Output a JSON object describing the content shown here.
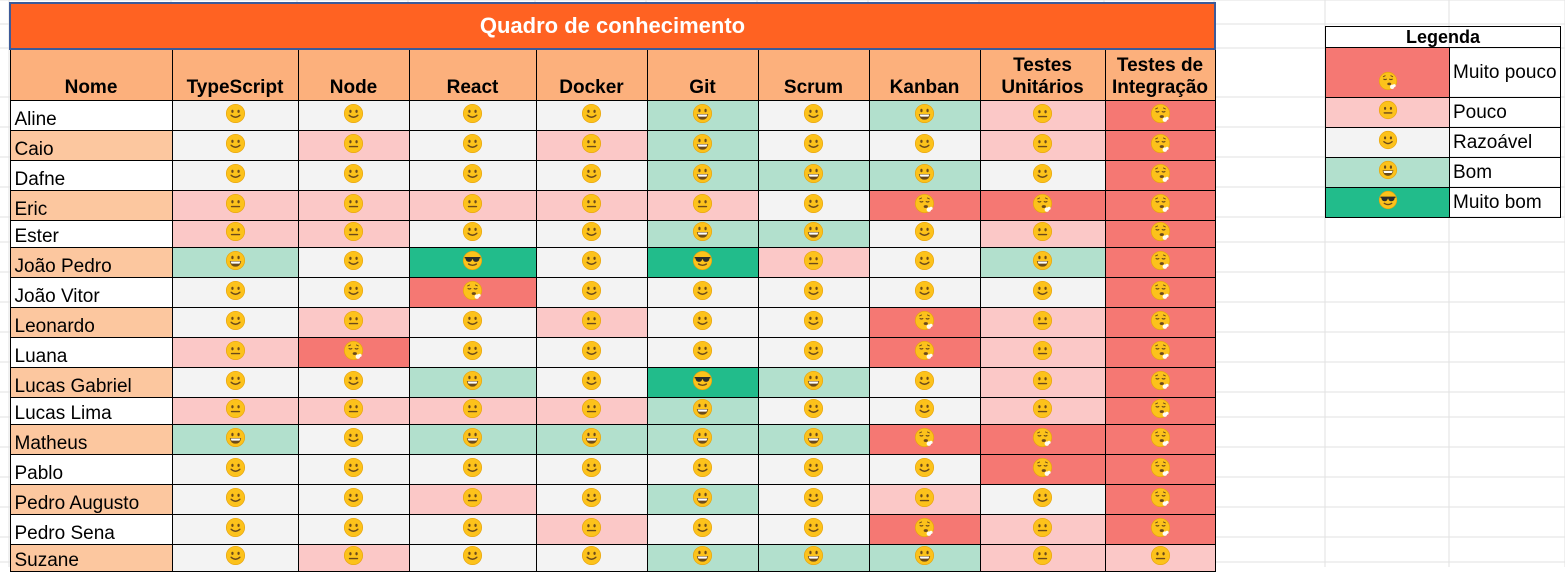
{
  "title": "Quadro de conhecimento",
  "colors": {
    "title_bg": "#ff6222",
    "header_bg": "#fcb07c",
    "name_alt_bg": "#fcc79f",
    "levels": {
      "muito_pouco": "#f57873",
      "pouco": "#fbc8c7",
      "razoavel": "#f3f3f3",
      "bom": "#b2e0cd",
      "muito_bom": "#22bc8b"
    }
  },
  "headers": [
    "Nome",
    "TypeScript",
    "Node",
    "React",
    "Docker",
    "Git",
    "Scrum",
    "Kanban",
    "Testes Unitários",
    "Testes de Integração"
  ],
  "rows": [
    {
      "name": "Aline",
      "levels": [
        "razoavel",
        "razoavel",
        "razoavel",
        "razoavel",
        "bom",
        "razoavel",
        "bom",
        "pouco",
        "muito_pouco"
      ]
    },
    {
      "name": "Caio",
      "levels": [
        "razoavel",
        "pouco",
        "razoavel",
        "pouco",
        "bom",
        "razoavel",
        "razoavel",
        "pouco",
        "muito_pouco"
      ]
    },
    {
      "name": "Dafne",
      "levels": [
        "razoavel",
        "razoavel",
        "razoavel",
        "razoavel",
        "bom",
        "bom",
        "bom",
        "razoavel",
        "muito_pouco"
      ]
    },
    {
      "name": "Eric",
      "levels": [
        "pouco",
        "pouco",
        "pouco",
        "pouco",
        "pouco",
        "razoavel",
        "muito_pouco",
        "muito_pouco",
        "muito_pouco"
      ]
    },
    {
      "name": "Ester",
      "levels": [
        "pouco",
        "pouco",
        "razoavel",
        "razoavel",
        "bom",
        "bom",
        "razoavel",
        "pouco",
        "muito_pouco"
      ]
    },
    {
      "name": "João Pedro",
      "levels": [
        "bom",
        "razoavel",
        "muito_bom",
        "razoavel",
        "muito_bom",
        "pouco",
        "razoavel",
        "bom",
        "muito_pouco"
      ]
    },
    {
      "name": "João Vitor",
      "levels": [
        "razoavel",
        "razoavel",
        "muito_pouco",
        "razoavel",
        "razoavel",
        "razoavel",
        "razoavel",
        "razoavel",
        "muito_pouco"
      ]
    },
    {
      "name": "Leonardo",
      "levels": [
        "razoavel",
        "pouco",
        "razoavel",
        "pouco",
        "razoavel",
        "razoavel",
        "muito_pouco",
        "pouco",
        "muito_pouco"
      ]
    },
    {
      "name": "Luana",
      "levels": [
        "pouco",
        "muito_pouco",
        "razoavel",
        "razoavel",
        "razoavel",
        "razoavel",
        "muito_pouco",
        "pouco",
        "muito_pouco"
      ]
    },
    {
      "name": "Lucas Gabriel",
      "levels": [
        "razoavel",
        "razoavel",
        "bom",
        "razoavel",
        "muito_bom",
        "bom",
        "razoavel",
        "pouco",
        "muito_pouco"
      ]
    },
    {
      "name": "Lucas Lima",
      "levels": [
        "pouco",
        "pouco",
        "pouco",
        "pouco",
        "bom",
        "razoavel",
        "razoavel",
        "pouco",
        "muito_pouco"
      ]
    },
    {
      "name": "Matheus",
      "levels": [
        "bom",
        "razoavel",
        "bom",
        "bom",
        "bom",
        "bom",
        "muito_pouco",
        "muito_pouco",
        "muito_pouco"
      ]
    },
    {
      "name": "Pablo",
      "levels": [
        "razoavel",
        "razoavel",
        "razoavel",
        "razoavel",
        "razoavel",
        "razoavel",
        "razoavel",
        "muito_pouco",
        "muito_pouco"
      ]
    },
    {
      "name": "Pedro Augusto",
      "levels": [
        "razoavel",
        "razoavel",
        "pouco",
        "razoavel",
        "bom",
        "razoavel",
        "pouco",
        "razoavel",
        "muito_pouco"
      ]
    },
    {
      "name": "Pedro Sena",
      "levels": [
        "razoavel",
        "razoavel",
        "razoavel",
        "pouco",
        "razoavel",
        "razoavel",
        "muito_pouco",
        "pouco",
        "muito_pouco"
      ]
    },
    {
      "name": "Suzane",
      "levels": [
        "razoavel",
        "pouco",
        "razoavel",
        "razoavel",
        "bom",
        "bom",
        "bom",
        "pouco",
        "pouco"
      ]
    }
  ],
  "legend": {
    "title": "Legenda",
    "items": [
      {
        "key": "muito_pouco",
        "label": "Muito pouco",
        "icon": "exhaling-face-icon"
      },
      {
        "key": "pouco",
        "label": "Pouco",
        "icon": "neutral-face-icon"
      },
      {
        "key": "razoavel",
        "label": "Razoável",
        "icon": "slightly-smiling-face-icon"
      },
      {
        "key": "bom",
        "label": "Bom",
        "icon": "grinning-face-icon"
      },
      {
        "key": "muito_bom",
        "label": "Muito bom",
        "icon": "sunglasses-face-icon"
      }
    ]
  }
}
